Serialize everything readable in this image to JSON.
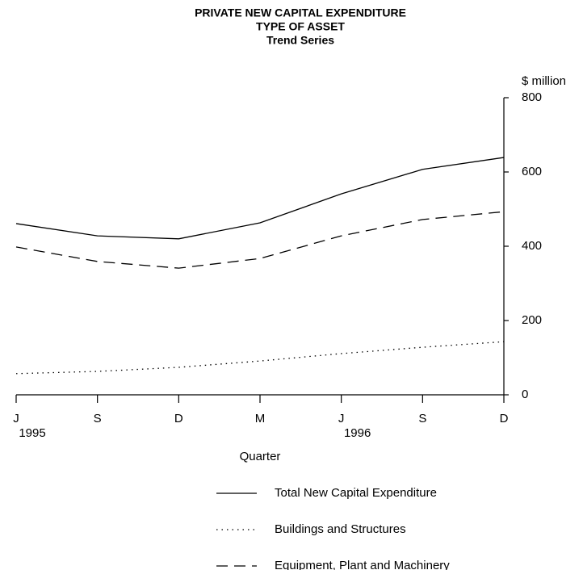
{
  "chart_data": {
    "type": "line",
    "title": [
      "PRIVATE NEW CAPITAL EXPENDITURE",
      "TYPE OF ASSET",
      "Trend Series"
    ],
    "x_label": "Quarter",
    "y_label": "$ million",
    "y_axis_side": "right",
    "categories": [
      "J",
      "S",
      "D",
      "M",
      "J",
      "S",
      "D"
    ],
    "year_labels": [
      "1995",
      null,
      null,
      null,
      "1996",
      null,
      null
    ],
    "ylim": [
      0,
      800
    ],
    "yticks": [
      0,
      200,
      400,
      600,
      800
    ],
    "grid": false,
    "legend": "bottom",
    "series": [
      {
        "name": "Total New Capital Expenditure",
        "color": "#000000",
        "dash": "solid",
        "values": [
          461,
          428,
          420,
          463,
          541,
          607,
          639
        ]
      },
      {
        "name": "Buildings and Structures",
        "color": "#000000",
        "dash": "dotted",
        "values": [
          57,
          63,
          74,
          91,
          111,
          128,
          143
        ]
      },
      {
        "name": "Equipment, Plant and Machinery",
        "color": "#000000",
        "dash": "dashed",
        "values": [
          398,
          359,
          341,
          367,
          428,
          472,
          493
        ]
      }
    ]
  }
}
